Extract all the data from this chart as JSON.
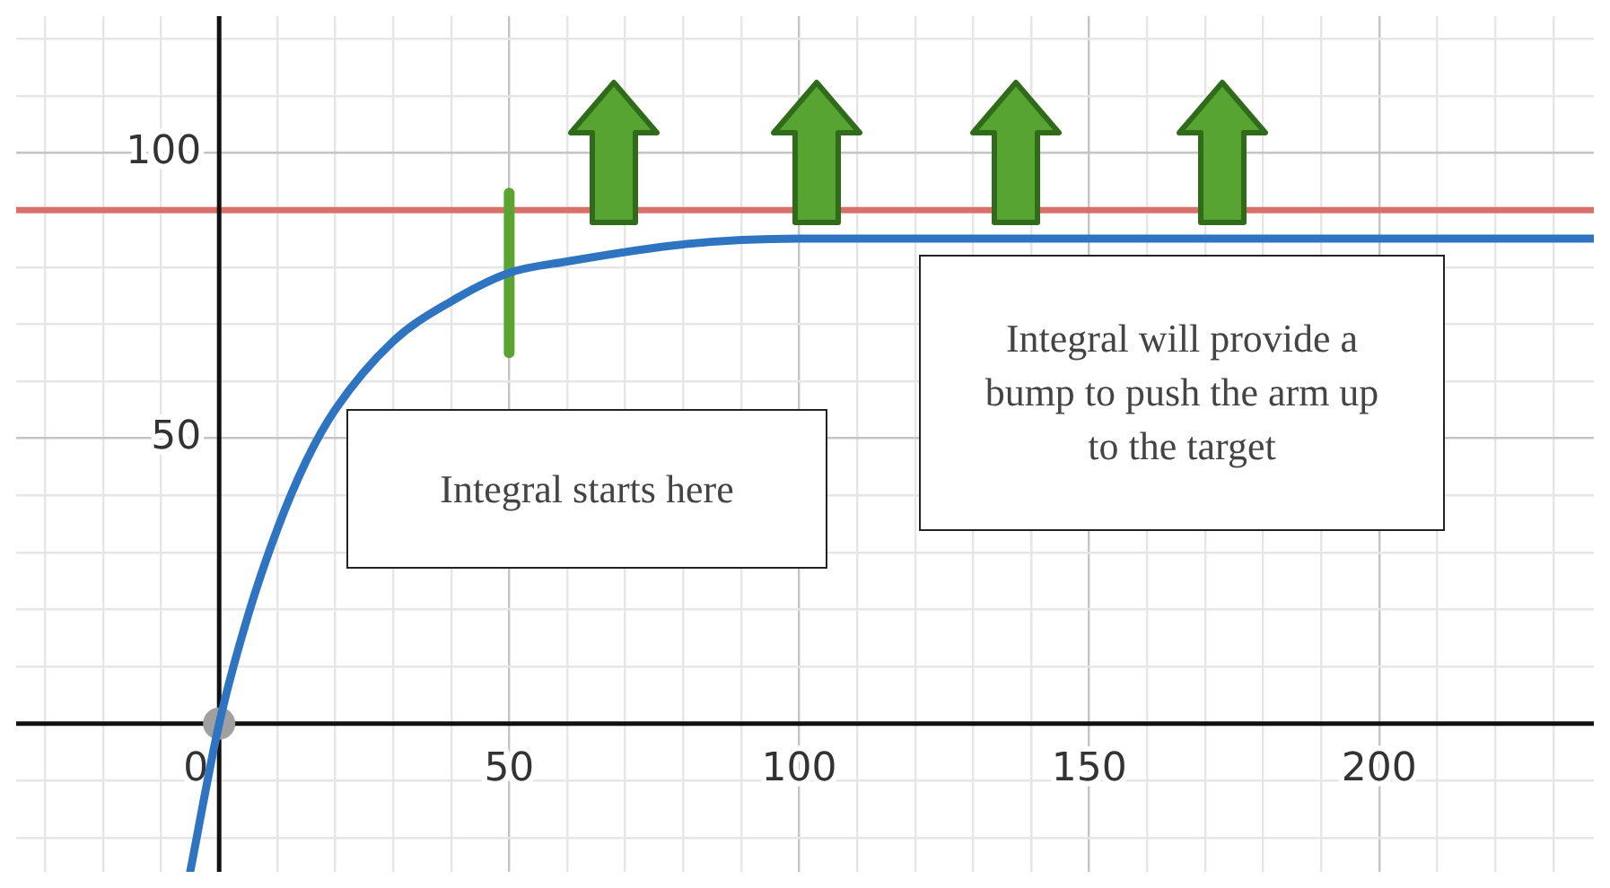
{
  "chart_data": {
    "type": "line",
    "xlim": [
      -35,
      237
    ],
    "ylim": [
      -26,
      124
    ],
    "xticks": [
      {
        "value": -30,
        "label": null
      },
      {
        "value": -20,
        "label": null
      },
      {
        "value": -10,
        "label": null
      },
      0,
      {
        "value": 10,
        "label": null
      },
      {
        "value": 20,
        "label": null
      },
      {
        "value": 30,
        "label": null
      },
      {
        "value": 40,
        "label": null
      },
      50,
      {
        "value": 60,
        "label": null
      },
      {
        "value": 70,
        "label": null
      },
      {
        "value": 80,
        "label": null
      },
      {
        "value": 90,
        "label": null
      },
      100,
      {
        "value": 110,
        "label": null
      },
      {
        "value": 120,
        "label": null
      },
      {
        "value": 130,
        "label": null
      },
      {
        "value": 140,
        "label": null
      },
      150,
      {
        "value": 160,
        "label": null
      },
      {
        "value": 170,
        "label": null
      },
      {
        "value": 180,
        "label": null
      },
      {
        "value": 190,
        "label": null
      },
      200,
      {
        "value": 210,
        "label": null
      },
      {
        "value": 220,
        "label": null
      },
      {
        "value": 230,
        "label": null
      }
    ],
    "yticks": [
      {
        "value": -20,
        "label": null
      },
      {
        "value": -10,
        "label": null
      },
      {
        "value": 0,
        "label": null
      },
      {
        "value": 10,
        "label": null
      },
      {
        "value": 20,
        "label": null
      },
      {
        "value": 30,
        "label": null
      },
      {
        "value": 40,
        "label": null
      },
      50,
      {
        "value": 60,
        "label": null
      },
      {
        "value": 70,
        "label": null
      },
      {
        "value": 80,
        "label": null
      },
      {
        "value": 90,
        "label": null
      },
      100,
      {
        "value": 110,
        "label": null
      },
      {
        "value": 120,
        "label": null
      }
    ],
    "grid": true,
    "legend": false,
    "series": [
      {
        "color": "#2f74c0",
        "marker": "none",
        "x": [
          -5,
          0,
          5,
          10,
          15,
          20,
          30,
          40,
          50,
          60,
          80,
          100,
          150,
          237
        ],
        "values": [
          -26,
          0,
          19,
          34,
          46,
          55,
          67,
          74,
          79,
          81,
          84,
          85,
          85,
          85
        ]
      },
      {
        "color": "#5aa532",
        "marker": "none",
        "x": [
          50,
          50
        ],
        "values": [
          65,
          93
        ]
      },
      {
        "type": "scatter",
        "color": "#a0a0a0",
        "marker": "circle",
        "x": [
          0
        ],
        "values": [
          0
        ]
      }
    ],
    "ref_lines": [
      {
        "axis": "y",
        "value": 90,
        "color": "#d9706a"
      }
    ],
    "annotations": [
      "Integral starts here",
      "Integral will provide a bump to push the arm up to the target"
    ]
  }
}
